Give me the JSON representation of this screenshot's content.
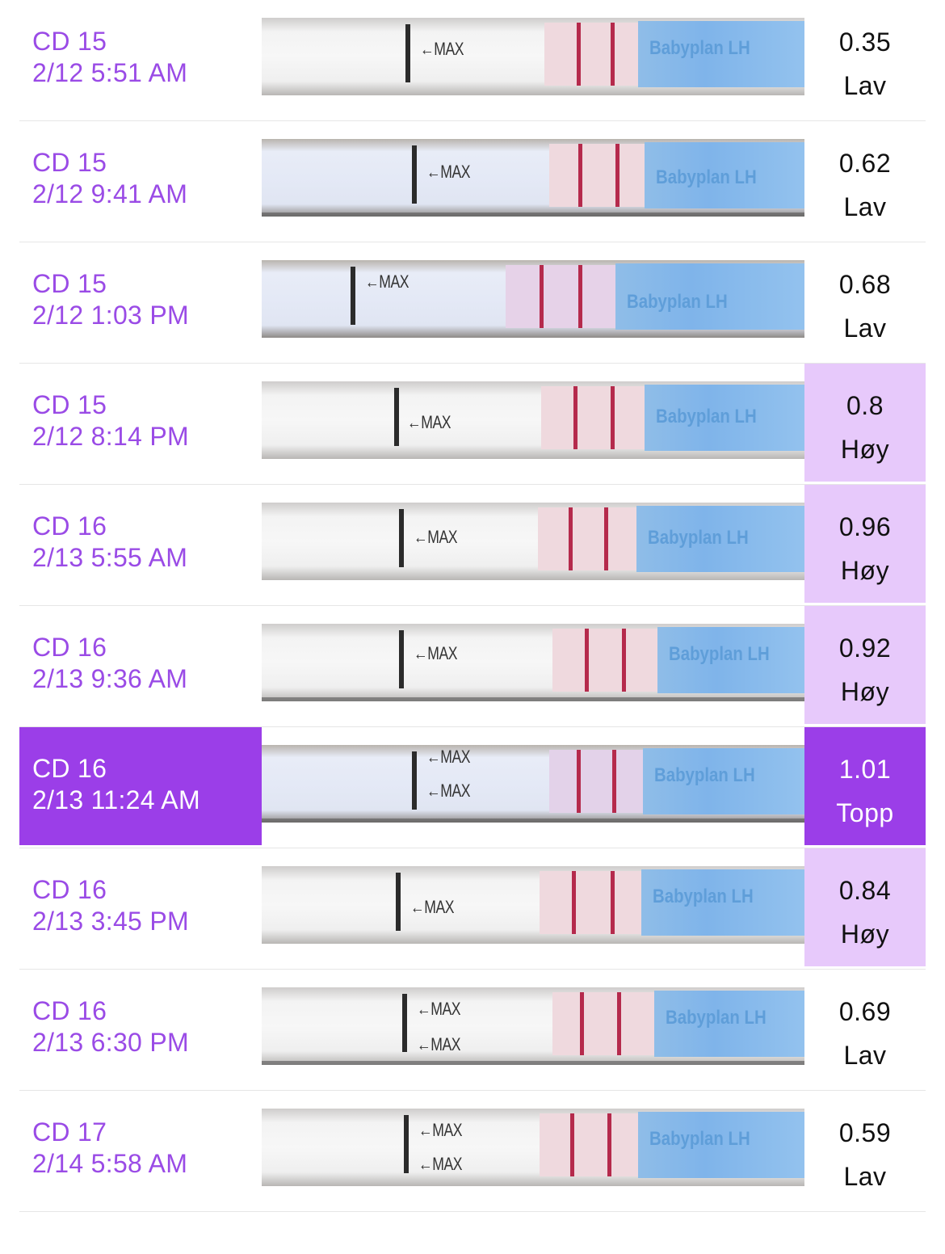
{
  "rows": [
    {
      "cycle_day": "CD 15",
      "datetime": "2/12 5:51 AM",
      "value": "0.35",
      "level": "Lav",
      "state": "low"
    },
    {
      "cycle_day": "CD 15",
      "datetime": "2/12 9:41 AM",
      "value": "0.62",
      "level": "Lav",
      "state": "low"
    },
    {
      "cycle_day": "CD 15",
      "datetime": "2/12 1:03 PM",
      "value": "0.68",
      "level": "Lav",
      "state": "low"
    },
    {
      "cycle_day": "CD 15",
      "datetime": "2/12 8:14 PM",
      "value": "0.8",
      "level": "Høy",
      "state": "high"
    },
    {
      "cycle_day": "CD 16",
      "datetime": "2/13 5:55 AM",
      "value": "0.96",
      "level": "Høy",
      "state": "high"
    },
    {
      "cycle_day": "CD 16",
      "datetime": "2/13 9:36 AM",
      "value": "0.92",
      "level": "Høy",
      "state": "high"
    },
    {
      "cycle_day": "CD 16",
      "datetime": "2/13 11:24 AM",
      "value": "1.01",
      "level": "Topp",
      "state": "peak"
    },
    {
      "cycle_day": "CD 16",
      "datetime": "2/13 3:45 PM",
      "value": "0.84",
      "level": "Høy",
      "state": "high"
    },
    {
      "cycle_day": "CD 16",
      "datetime": "2/13 6:30 PM",
      "value": "0.69",
      "level": "Lav",
      "state": "low"
    },
    {
      "cycle_day": "CD 17",
      "datetime": "2/14 5:58 AM",
      "value": "0.59",
      "level": "Lav",
      "state": "low"
    }
  ],
  "strip": {
    "max_marker": "←MAX",
    "brand_text": "Babyplan LH"
  },
  "colors": {
    "accent_purple": "#9b3ee8",
    "label_purple": "#9a4be6",
    "high_highlight": "#e7c9fb",
    "test_line": "#b52a4c",
    "wick_blue": "#7fb4ea"
  }
}
